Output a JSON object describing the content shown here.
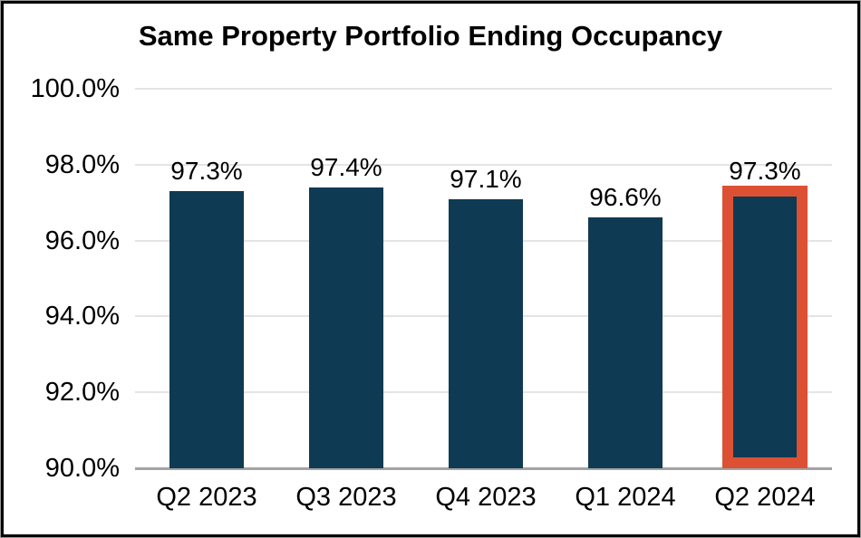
{
  "chart_data": {
    "type": "bar",
    "title": "Same Property Portfolio Ending Occupancy",
    "categories": [
      "Q2 2023",
      "Q3 2023",
      "Q4 2023",
      "Q1 2024",
      "Q2 2024"
    ],
    "values": [
      97.3,
      97.4,
      97.1,
      96.6,
      97.3
    ],
    "data_labels": [
      "97.3%",
      "97.4%",
      "97.1%",
      "96.6%",
      "97.3%"
    ],
    "xlabel": "",
    "ylabel": "",
    "ylim": [
      90,
      100
    ],
    "ytick_labels": [
      "100.0%",
      "98.0%",
      "96.0%",
      "94.0%",
      "92.0%",
      "90.0%"
    ],
    "ytick_values": [
      100,
      98,
      96,
      94,
      92,
      90
    ],
    "grid": true,
    "legend": false,
    "highlight": {
      "index": 4,
      "style": "outline"
    },
    "colors": {
      "bar": "#0e3a54",
      "highlight_outline": "#dc5133",
      "gridline": "#e4e4e4",
      "axis_line": "#a3a3a3",
      "text": "#000000",
      "background": "#ffffff",
      "frame_border": "#000000"
    }
  }
}
